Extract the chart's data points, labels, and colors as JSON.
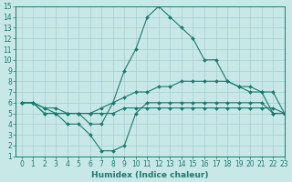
{
  "xlabel": "Humidex (Indice chaleur)",
  "x": [
    0,
    1,
    2,
    3,
    4,
    5,
    6,
    7,
    8,
    9,
    10,
    11,
    12,
    13,
    14,
    15,
    16,
    17,
    18,
    19,
    20,
    21,
    22,
    23
  ],
  "line1": [
    6,
    6,
    5,
    5,
    5,
    5,
    4,
    4,
    6,
    9,
    11,
    14,
    15,
    14,
    13,
    12,
    10,
    10,
    8,
    7.5,
    7,
    7,
    5,
    5
  ],
  "line2": [
    6,
    6,
    5,
    5,
    4,
    4,
    3,
    1.5,
    1.5,
    2,
    5,
    6,
    6,
    6,
    6,
    6,
    6,
    6,
    6,
    6,
    6,
    6,
    5,
    5
  ],
  "line3": [
    6,
    6,
    5.5,
    5.5,
    5,
    5,
    5,
    5.5,
    6,
    6.5,
    7,
    7,
    7.5,
    7.5,
    8,
    8,
    8,
    8,
    8,
    7.5,
    7.5,
    7,
    7,
    5
  ],
  "line4": [
    6,
    6,
    5.5,
    5,
    5,
    5,
    5,
    5,
    5,
    5.5,
    5.5,
    5.5,
    5.5,
    5.5,
    5.5,
    5.5,
    5.5,
    5.5,
    5.5,
    5.5,
    5.5,
    5.5,
    5.5,
    5
  ],
  "line_color": "#1a7a6e",
  "bg_color": "#c8e8e8",
  "grid_color": "#a8cccc",
  "ylim": [
    1,
    15
  ],
  "xlim": [
    -0.5,
    23
  ],
  "yticks": [
    1,
    2,
    3,
    4,
    5,
    6,
    7,
    8,
    9,
    10,
    11,
    12,
    13,
    14,
    15
  ],
  "xticks": [
    0,
    1,
    2,
    3,
    4,
    5,
    6,
    7,
    8,
    9,
    10,
    11,
    12,
    13,
    14,
    15,
    16,
    17,
    18,
    19,
    20,
    21,
    22,
    23
  ],
  "tick_fontsize": 5.5,
  "xlabel_fontsize": 6.5
}
